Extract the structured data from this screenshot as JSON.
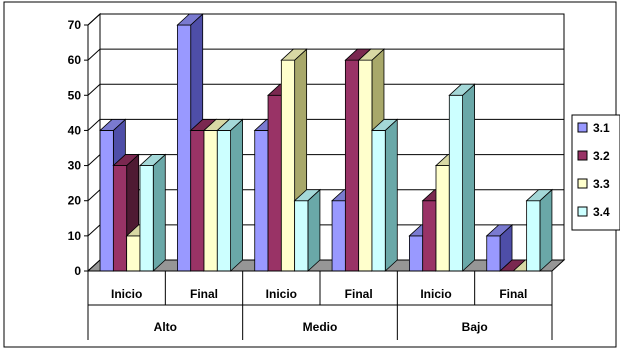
{
  "chart_data": {
    "type": "bar",
    "categories": [
      "Inicio",
      "Final",
      "Inicio",
      "Final",
      "Inicio",
      "Final"
    ],
    "groups": [
      "Alto",
      "Medio",
      "Bajo"
    ],
    "series": [
      {
        "name": "3.1",
        "values": [
          40,
          70,
          40,
          20,
          10,
          10
        ]
      },
      {
        "name": "3.2",
        "values": [
          30,
          40,
          50,
          60,
          20,
          0
        ]
      },
      {
        "name": "3.3",
        "values": [
          10,
          40,
          60,
          60,
          30,
          0
        ]
      },
      {
        "name": "3.4",
        "values": [
          30,
          40,
          20,
          40,
          50,
          20
        ]
      }
    ],
    "ylim": [
      0,
      70
    ],
    "yticks": [
      0,
      10,
      20,
      30,
      40,
      50,
      60,
      70
    ],
    "grid": true,
    "legend_position": "right",
    "colors": [
      "#9999FF",
      "#993366",
      "#FFFFCC",
      "#CCFFFF"
    ],
    "side_colors": [
      "#4E4EA8",
      "#4F1A33",
      "#A8A86A",
      "#6AA8A8"
    ],
    "top_colors": [
      "#7A7AD0",
      "#7A2850",
      "#D8D8A4",
      "#A4D8D8"
    ],
    "title": "",
    "xlabel": "",
    "ylabel": ""
  }
}
